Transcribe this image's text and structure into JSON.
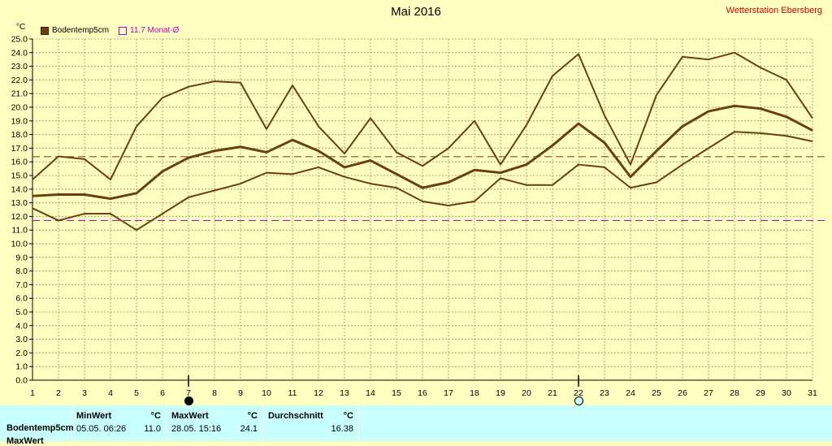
{
  "title": "Mai 2016",
  "station": "Wetterstation Ebersberg",
  "unit": "°C",
  "legend": {
    "series_label": "Bodentemp5cm",
    "avg_label": "11.7 Monat-Ø"
  },
  "colors": {
    "background": "#ffffc0",
    "series": "#6b3f10",
    "avg_line": "#c000c0",
    "grid": "#a0a080",
    "table": "#c8ffff"
  },
  "icons": {
    "full_moon_day": 7,
    "new_moon_day": 22,
    "full_moon": "full-moon-icon",
    "new_moon": "new-moon-icon"
  },
  "chart_data": {
    "type": "line",
    "title": "Mai 2016",
    "ylabel": "°C",
    "ylim": [
      0.0,
      25.0
    ],
    "ytick_step": 1.0,
    "yticks": [
      "0.0",
      "1.0",
      "2.0",
      "3.0",
      "4.0",
      "5.0",
      "6.0",
      "7.0",
      "8.0",
      "9.0",
      "10.0",
      "11.0",
      "12.0",
      "13.0",
      "14.0",
      "15.0",
      "16.0",
      "17.0",
      "18.0",
      "19.0",
      "20.0",
      "21.0",
      "22.0",
      "23.0",
      "24.0",
      "25.0"
    ],
    "x": [
      1,
      2,
      3,
      4,
      5,
      6,
      7,
      8,
      9,
      10,
      11,
      12,
      13,
      14,
      15,
      16,
      17,
      18,
      19,
      20,
      21,
      22,
      23,
      24,
      25,
      26,
      27,
      28,
      29,
      30,
      31
    ],
    "xticks": [
      "1",
      "2",
      "3",
      "4",
      "5",
      "6",
      "7",
      "8",
      "9",
      "10",
      "11",
      "12",
      "13",
      "14",
      "15",
      "16",
      "17",
      "18",
      "19",
      "20",
      "21",
      "22",
      "23",
      "24",
      "25",
      "26",
      "27",
      "28",
      "29",
      "30",
      "31"
    ],
    "grid": true,
    "legend_position": "top-left",
    "series": [
      {
        "role": "max",
        "values": [
          14.7,
          16.4,
          16.2,
          14.7,
          18.6,
          20.7,
          21.5,
          21.9,
          21.8,
          18.4,
          21.6,
          18.6,
          16.6,
          19.2,
          16.7,
          15.7,
          17.0,
          19.0,
          15.8,
          18.7,
          22.3,
          23.9,
          19.4,
          15.8,
          20.9,
          23.7,
          23.5,
          24.0,
          22.9,
          22.0,
          19.2
        ]
      },
      {
        "role": "mean",
        "values": [
          13.5,
          13.6,
          13.6,
          13.3,
          13.7,
          15.3,
          16.3,
          16.8,
          17.1,
          16.7,
          17.6,
          16.8,
          15.6,
          16.1,
          15.1,
          14.1,
          14.5,
          15.4,
          15.2,
          15.8,
          17.2,
          18.8,
          17.4,
          14.9,
          16.8,
          18.6,
          19.7,
          20.1,
          19.9,
          19.3,
          18.3
        ]
      },
      {
        "role": "min",
        "values": [
          12.6,
          11.7,
          12.2,
          12.2,
          11.0,
          12.2,
          13.4,
          13.9,
          14.4,
          15.2,
          15.1,
          15.6,
          14.9,
          14.4,
          14.1,
          13.1,
          12.8,
          13.1,
          14.8,
          14.3,
          14.3,
          15.8,
          15.6,
          14.1,
          14.5,
          15.8,
          17.0,
          18.2,
          18.1,
          17.9,
          17.5
        ]
      }
    ],
    "reference_lines": [
      {
        "value": 16.38,
        "style": "dashed"
      },
      {
        "value": 11.7,
        "style": "dashed",
        "label": "11.7 Monat-Ø"
      }
    ]
  },
  "table": {
    "row_label": "Bodentemp5cm",
    "row_label2": "MaxWert",
    "min_header": "MinWert",
    "min_unit": "°C",
    "min_date": "05.05.  06:26",
    "min_value": "11.0",
    "max_header": "MaxWert",
    "max_unit": "°C",
    "max_date": "28.05.  15:16",
    "max_value": "24.1",
    "avg_header": "Durchschnitt",
    "avg_unit": "°C",
    "avg_value": "16.38"
  }
}
